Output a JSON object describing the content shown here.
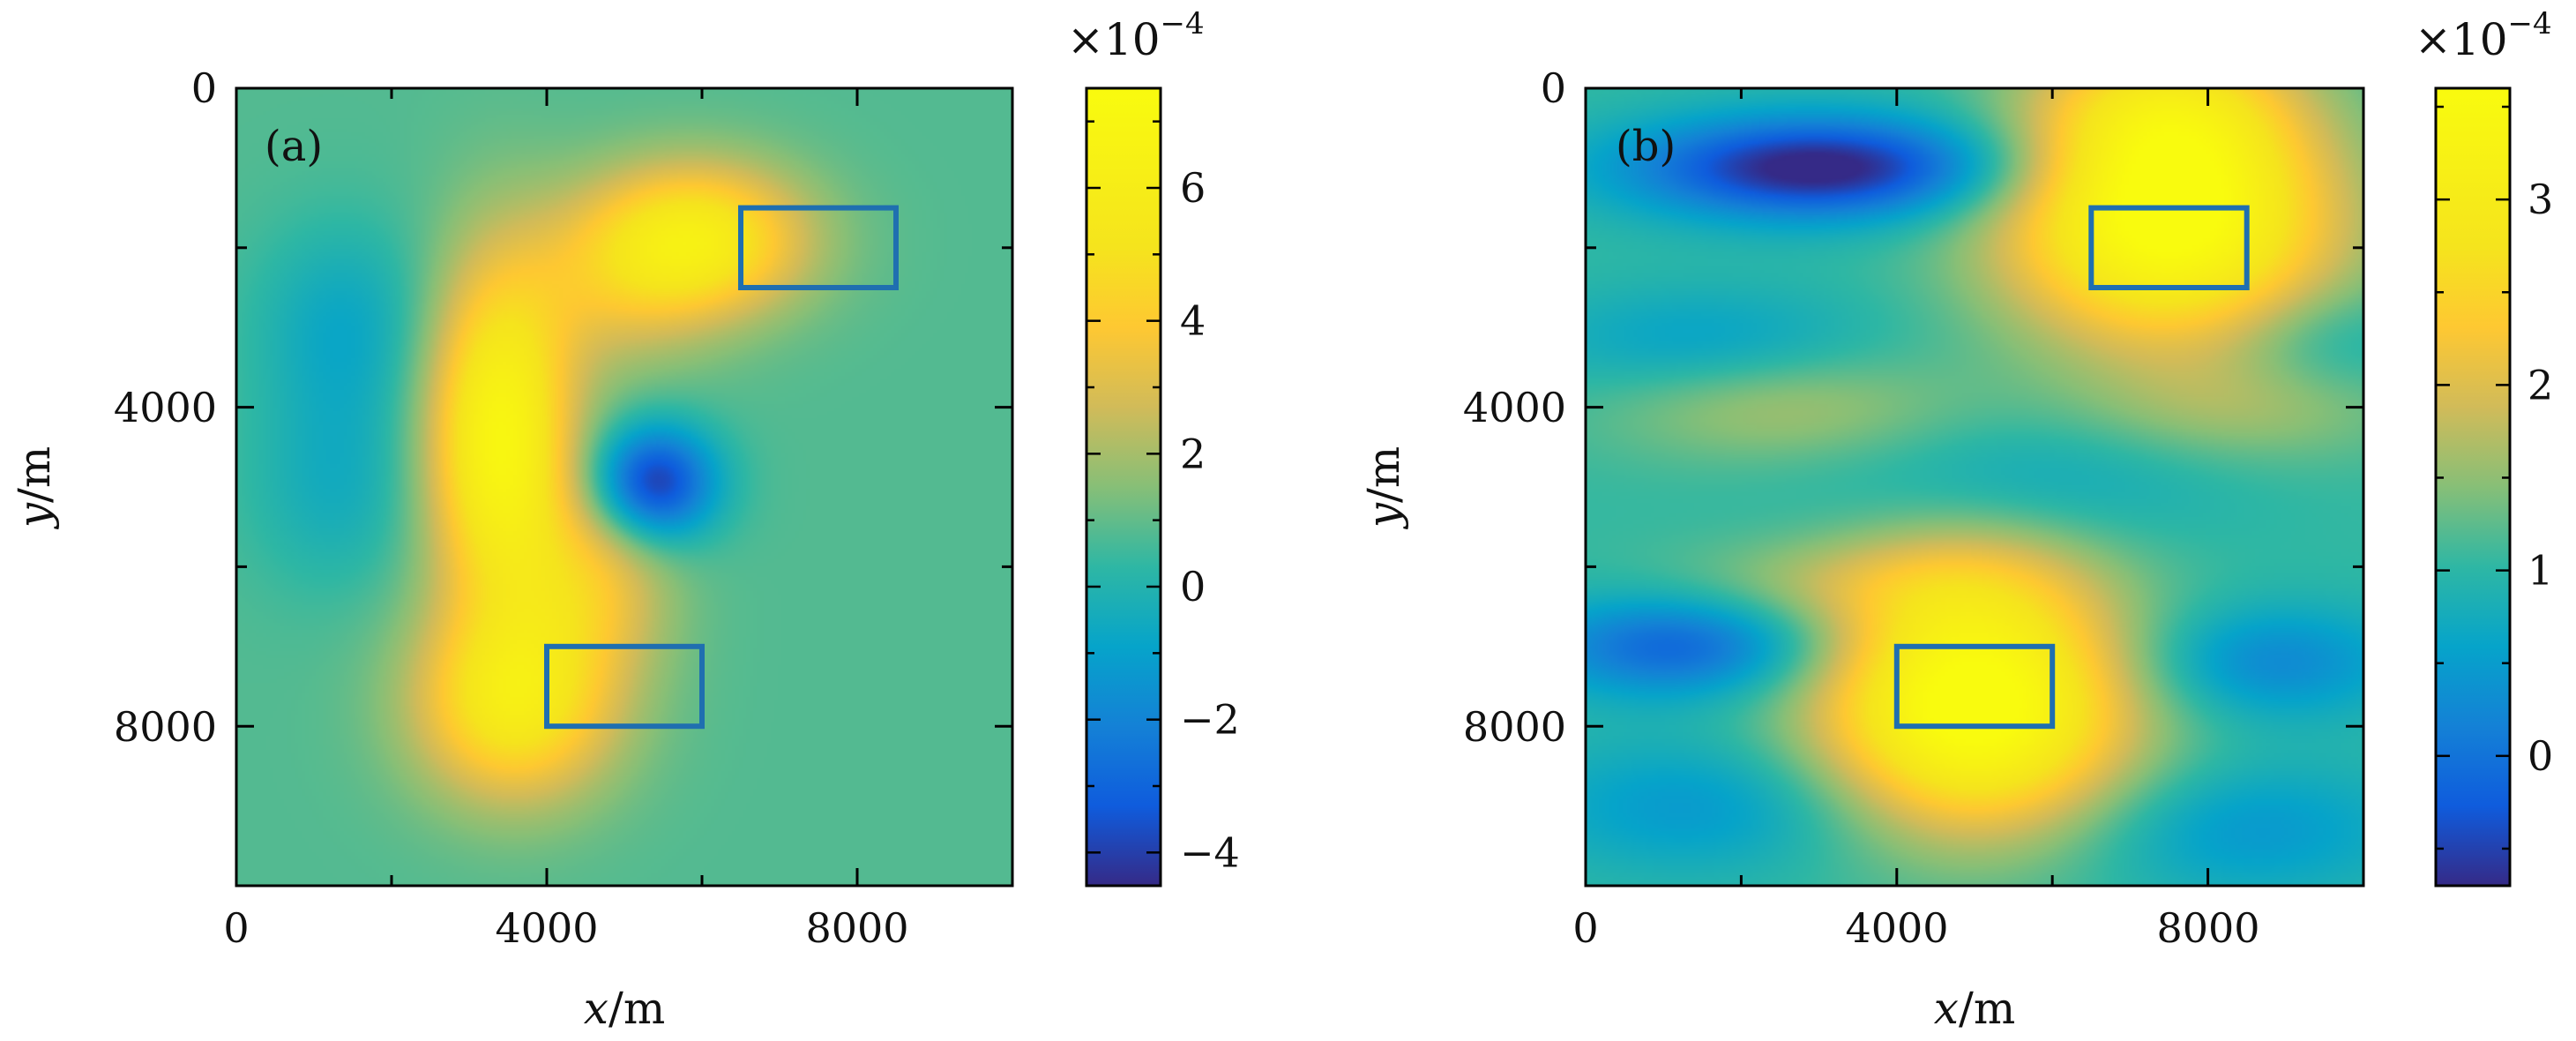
{
  "chart_data": [
    {
      "type": "heatmap",
      "panel_label": "(a)",
      "xlabel_var": "x",
      "xlabel_unit": "/m",
      "ylabel_var": "y",
      "ylabel_unit": "/m",
      "xlim": [
        0,
        10000
      ],
      "ylim": [
        0,
        10000
      ],
      "y_inverted": true,
      "x_ticks": [
        0,
        4000,
        8000
      ],
      "y_ticks": [
        0,
        4000,
        8000
      ],
      "minor_step": 2000,
      "colorbar": {
        "range": [
          -4.5,
          7.5
        ],
        "ticks": [
          -4,
          -2,
          0,
          2,
          4,
          6
        ],
        "tick_labels": [
          "−4",
          "−2",
          "0",
          "2",
          "4",
          "6"
        ],
        "multiplier_base": "×10",
        "multiplier_exp": "−4"
      },
      "background_value": 0.8,
      "features": [
        {
          "x": 3400,
          "y": 4400,
          "amp": 6.2,
          "sx": 650,
          "sy": 1500
        },
        {
          "x": 3600,
          "y": 7700,
          "amp": 4.8,
          "sx": 900,
          "sy": 850
        },
        {
          "x": 6000,
          "y": 1900,
          "amp": 4.8,
          "sx": 950,
          "sy": 650
        },
        {
          "x": 5400,
          "y": 4950,
          "amp": -5.0,
          "sx": 550,
          "sy": 500
        },
        {
          "x": 1400,
          "y": 3000,
          "amp": -1.5,
          "sx": 800,
          "sy": 900
        },
        {
          "x": 1300,
          "y": 5000,
          "amp": -1.2,
          "sx": 800,
          "sy": 900
        },
        {
          "x": 4600,
          "y": 6200,
          "amp": 2.5,
          "sx": 700,
          "sy": 800
        },
        {
          "x": 4900,
          "y": 2400,
          "amp": 2.0,
          "sx": 900,
          "sy": 800
        }
      ],
      "rectangles": [
        {
          "x0": 6500,
          "x1": 8500,
          "y0": 1500,
          "y1": 2500
        },
        {
          "x0": 4000,
          "x1": 6000,
          "y0": 7000,
          "y1": 8000
        }
      ]
    },
    {
      "type": "heatmap",
      "panel_label": "(b)",
      "xlabel_var": "x",
      "xlabel_unit": "/m",
      "ylabel_var": "y",
      "ylabel_unit": "/m",
      "xlim": [
        0,
        10000
      ],
      "ylim": [
        0,
        10000
      ],
      "y_inverted": true,
      "x_ticks": [
        0,
        4000,
        8000
      ],
      "y_ticks": [
        0,
        4000,
        8000
      ],
      "minor_step": 2000,
      "colorbar": {
        "range": [
          -0.7,
          3.6
        ],
        "ticks": [
          0,
          1,
          2,
          3
        ],
        "tick_labels": [
          "0",
          "1",
          "2",
          "3"
        ],
        "multiplier_base": "×10",
        "multiplier_exp": "−4"
      },
      "background_value": 1.05,
      "features": [
        {
          "x": 7500,
          "y": 1800,
          "amp": 2.5,
          "sx": 1500,
          "sy": 1000
        },
        {
          "x": 7500,
          "y": 300,
          "amp": 1.5,
          "sx": 1200,
          "sy": 800
        },
        {
          "x": 5000,
          "y": 7900,
          "amp": 2.6,
          "sx": 1400,
          "sy": 1000
        },
        {
          "x": 5000,
          "y": 6300,
          "amp": 0.9,
          "sx": 1300,
          "sy": 900
        },
        {
          "x": 3000,
          "y": 1000,
          "amp": -1.9,
          "sx": 1700,
          "sy": 450
        },
        {
          "x": 1200,
          "y": 7000,
          "amp": -1.2,
          "sx": 1300,
          "sy": 450
        },
        {
          "x": 8800,
          "y": 7200,
          "amp": -0.8,
          "sx": 1200,
          "sy": 500
        },
        {
          "x": 5500,
          "y": 5000,
          "amp": -0.5,
          "sx": 1700,
          "sy": 600
        },
        {
          "x": 1500,
          "y": 9000,
          "amp": -0.6,
          "sx": 1600,
          "sy": 600
        },
        {
          "x": 8500,
          "y": 9300,
          "amp": -0.6,
          "sx": 1500,
          "sy": 600
        },
        {
          "x": 2500,
          "y": 4000,
          "amp": 0.6,
          "sx": 1600,
          "sy": 500
        },
        {
          "x": 8500,
          "y": 4000,
          "amp": 0.5,
          "sx": 1500,
          "sy": 500
        },
        {
          "x": 1500,
          "y": 3200,
          "amp": -0.5,
          "sx": 1500,
          "sy": 500
        },
        {
          "x": 9500,
          "y": 3200,
          "amp": -0.4,
          "sx": 900,
          "sy": 500
        },
        {
          "x": 3000,
          "y": 6200,
          "amp": 0.4,
          "sx": 1500,
          "sy": 400
        }
      ],
      "rectangles": [
        {
          "x0": 6500,
          "x1": 8500,
          "y0": 1500,
          "y1": 2500
        },
        {
          "x0": 4000,
          "x1": 6000,
          "y0": 7000,
          "y1": 8000
        }
      ]
    }
  ]
}
